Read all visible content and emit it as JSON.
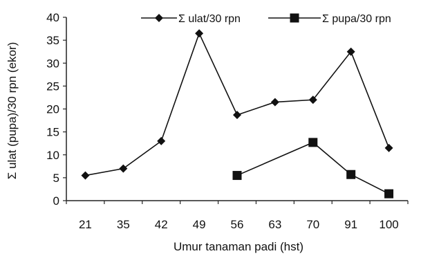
{
  "chart_data": {
    "type": "line",
    "categories": [
      "21",
      "35",
      "42",
      "49",
      "56",
      "63",
      "70",
      "91",
      "100"
    ],
    "series": [
      {
        "name": "Σ ulat/30 rpn",
        "marker": "diamond",
        "values": [
          5.5,
          7,
          13,
          36.5,
          18.7,
          21.5,
          22,
          32.5,
          11.5
        ]
      },
      {
        "name": "Σ pupa/30 rpn",
        "marker": "square",
        "values": [
          null,
          null,
          null,
          null,
          5.5,
          null,
          12.7,
          5.7,
          1.5
        ]
      }
    ],
    "title": "",
    "xlabel": "Umur tanaman padi (hst)",
    "ylabel": "Σ ulat (pupa)/30 rpn (ekor)",
    "ylim": [
      0,
      40
    ],
    "yticks": [
      0,
      5,
      10,
      15,
      20,
      25,
      30,
      35,
      40
    ],
    "grid": false,
    "legend_position": "top",
    "colors": {
      "line": "#111111",
      "axis": "#222222"
    }
  }
}
